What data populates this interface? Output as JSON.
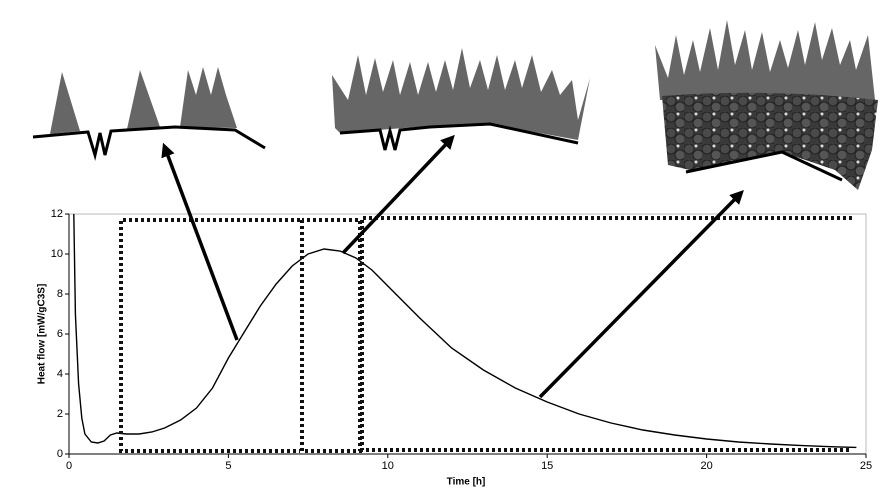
{
  "chart_data": {
    "type": "line",
    "x_label": "Time [h]",
    "y_label": "Heat flow [mW/gC3S]",
    "x": [
      0.15,
      0.2,
      0.3,
      0.4,
      0.5,
      0.7,
      0.9,
      1.1,
      1.3,
      1.5,
      1.8,
      2.2,
      2.6,
      3,
      3.5,
      4,
      4.5,
      5,
      5.5,
      6,
      6.5,
      7,
      7.5,
      8,
      8.5,
      9,
      9.5,
      10,
      11,
      12,
      13,
      14,
      15,
      16,
      17,
      18,
      19,
      20,
      21,
      22,
      23,
      24,
      24.7
    ],
    "series": [
      {
        "color": "#000000",
        "values": [
          12,
          7,
          3.5,
          1.8,
          1.0,
          0.6,
          0.55,
          0.65,
          0.95,
          1.05,
          1.0,
          1.0,
          1.1,
          1.3,
          1.7,
          2.3,
          3.3,
          4.8,
          6.1,
          7.4,
          8.5,
          9.4,
          10.0,
          10.25,
          10.15,
          9.8,
          9.2,
          8.4,
          6.8,
          5.3,
          4.2,
          3.3,
          2.6,
          2.0,
          1.55,
          1.2,
          0.95,
          0.75,
          0.6,
          0.5,
          0.42,
          0.36,
          0.33
        ]
      }
    ],
    "xlim": [
      0,
      25
    ],
    "xticks": [
      0,
      5,
      10,
      15,
      20,
      25
    ],
    "ylim": [
      0,
      12
    ],
    "yticks": [
      0,
      2,
      4,
      6,
      8,
      10,
      12
    ]
  }
}
